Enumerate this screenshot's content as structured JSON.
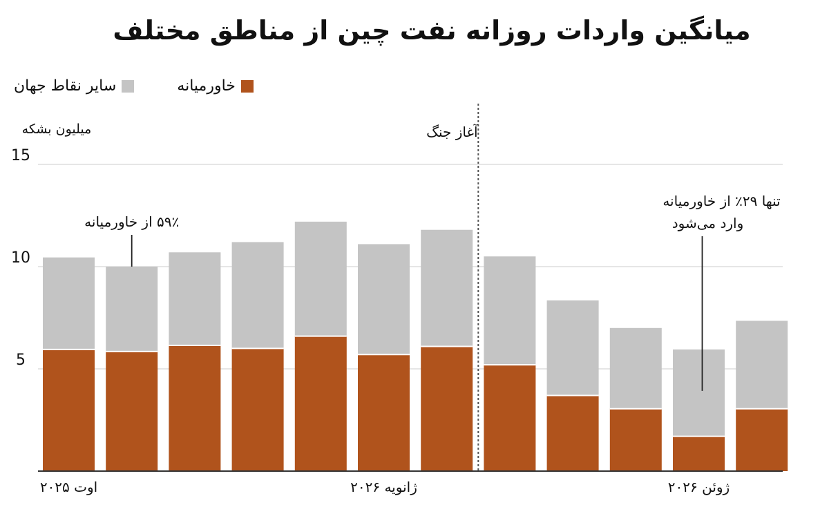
{
  "title": "میانگین واردات روزانه نفت چین از مناطق مختلف",
  "legend": {
    "middle_east": "خاورمیانه",
    "rest_of_world": "سایر نقاط جهان"
  },
  "colors": {
    "middle_east": "#b0531c",
    "rest_of_world": "#c4c4c4",
    "grid": "#dddddd",
    "axis": "#333333"
  },
  "chart_data": {
    "type": "bar",
    "stacked": true,
    "title": "میانگین واردات روزانه نفت چین از مناطق مختلف",
    "ylabel": "میلیون بشکه",
    "ylim": [
      0,
      15
    ],
    "yticks": [
      {
        "value": 5,
        "label": "5"
      },
      {
        "value": 10,
        "label": "10"
      },
      {
        "value": 15,
        "label": "15"
      }
    ],
    "grid": true,
    "legend_position": "top-left",
    "categories": [
      "",
      "",
      "",
      "",
      "",
      "",
      "",
      "",
      "",
      "",
      "",
      ""
    ],
    "series": [
      {
        "name": "خاورمیانه",
        "values": [
          5.95,
          5.85,
          6.15,
          6.0,
          6.6,
          5.7,
          6.1,
          5.2,
          3.7,
          3.05,
          1.7,
          3.05
        ]
      },
      {
        "name": "سایر نقاط جهان",
        "values": [
          4.5,
          4.15,
          4.55,
          5.2,
          5.6,
          5.4,
          5.7,
          5.3,
          4.65,
          3.95,
          4.25,
          4.3
        ]
      }
    ],
    "x_tick_labels": [
      {
        "index": 0,
        "label": "اوت ۲۰۲۵"
      },
      {
        "index": 5,
        "label": "ژانویه ۲۰۲۶"
      },
      {
        "index": 10,
        "label": "ژوئن ۲۰۲۶"
      }
    ],
    "annotations": [
      {
        "text": "۵۹٪ از خاورمیانه",
        "index": 1
      },
      {
        "text": "آغاز جنگ",
        "between": [
          6,
          7
        ]
      },
      {
        "text": "تنها ۲۹٪ از خاورمیانه",
        "text2": "وارد می‌شود",
        "index": 10
      }
    ]
  }
}
